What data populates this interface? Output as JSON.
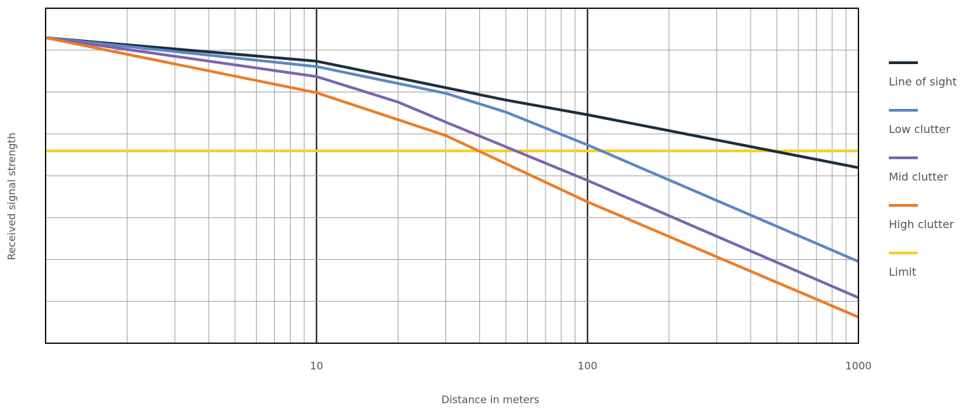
{
  "chart_data": {
    "type": "line",
    "title": "",
    "xlabel": "Distance in meters",
    "ylabel": "Received signal strength",
    "x_scale": "log",
    "xlim": [
      1,
      1000
    ],
    "ylim": [
      0,
      100
    ],
    "x_ticks": [
      {
        "value": 10,
        "label": "10"
      },
      {
        "value": 100,
        "label": "100"
      },
      {
        "value": 1000,
        "label": "1000"
      }
    ],
    "y_tick_labels_shown": false,
    "grid": true,
    "legend_position": "right",
    "series": [
      {
        "name": "Line of sight",
        "color": "#1e2d3a",
        "points": [
          [
            1,
            91.2
          ],
          [
            10,
            84.2
          ],
          [
            50,
            72.6
          ],
          [
            100,
            68.2
          ],
          [
            1000,
            52.4
          ]
        ]
      },
      {
        "name": "Low clutter",
        "color": "#5b87c4",
        "points": [
          [
            1,
            91.2
          ],
          [
            10,
            82.6
          ],
          [
            30,
            74.6
          ],
          [
            50,
            69.0
          ],
          [
            100,
            59.2
          ],
          [
            1000,
            24.4
          ]
        ]
      },
      {
        "name": "Mid clutter",
        "color": "#7a64ae",
        "points": [
          [
            1,
            91.2
          ],
          [
            10,
            79.6
          ],
          [
            20,
            72.0
          ],
          [
            30,
            66.0
          ],
          [
            100,
            48.6
          ],
          [
            1000,
            13.6
          ]
        ]
      },
      {
        "name": "High clutter",
        "color": "#ee7b27",
        "points": [
          [
            1,
            91.2
          ],
          [
            10,
            74.8
          ],
          [
            30,
            62.0
          ],
          [
            100,
            42.2
          ],
          [
            1000,
            7.8
          ]
        ]
      },
      {
        "name": "Limit",
        "color": "#f8cf2a",
        "points": [
          [
            1,
            57.4
          ],
          [
            1000,
            57.4
          ]
        ]
      }
    ]
  }
}
